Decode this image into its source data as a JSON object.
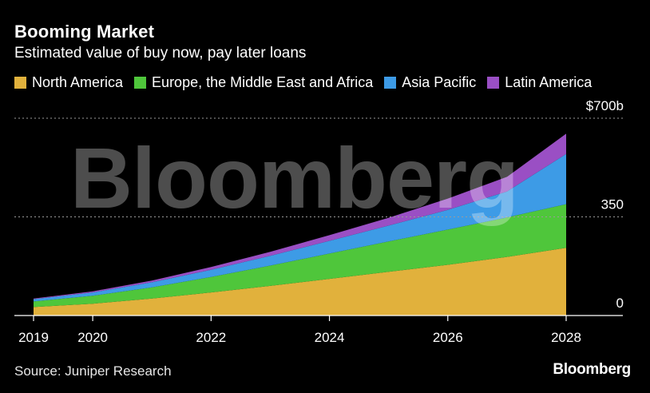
{
  "title": "Booming Market",
  "subtitle": "Estimated value of buy now, pay later loans",
  "source": "Source: Juniper Research",
  "brand": "Bloomberg",
  "watermark": "Bloomberg",
  "chart_data": {
    "type": "area",
    "stacked": true,
    "title": "Booming Market",
    "subtitle": "Estimated value of buy now, pay later loans",
    "x": [
      2019,
      2020,
      2021,
      2022,
      2023,
      2024,
      2025,
      2026,
      2027,
      2028
    ],
    "x_tick_labels": [
      "2019",
      "2020",
      "2022",
      "2024",
      "2026",
      "2028"
    ],
    "x_ticks": [
      2019,
      2020,
      2022,
      2024,
      2026,
      2028
    ],
    "y_tick_labels": [
      "$700b",
      "350",
      "0"
    ],
    "y_ticks": [
      700,
      350,
      0
    ],
    "ylim": [
      0,
      700
    ],
    "xlim": [
      2019,
      2028
    ],
    "grid": "horizontal dotted",
    "legend": "top",
    "series": [
      {
        "name": "North America",
        "color": "#e1b13c",
        "values": [
          30,
          42,
          60,
          82,
          105,
          130,
          155,
          180,
          208,
          240
        ]
      },
      {
        "name": "Europe, the Middle East and Africa",
        "color": "#4fc63b",
        "values": [
          20,
          28,
          40,
          55,
          72,
          90,
          108,
          125,
          140,
          155
        ]
      },
      {
        "name": "Asia Pacific",
        "color": "#3d9be6",
        "values": [
          8,
          12,
          18,
          25,
          35,
          45,
          56,
          70,
          92,
          178
        ]
      },
      {
        "name": "Latin America",
        "color": "#9a4fc4",
        "values": [
          2,
          4,
          6,
          10,
          14,
          20,
          28,
          40,
          52,
          72
        ]
      }
    ]
  }
}
